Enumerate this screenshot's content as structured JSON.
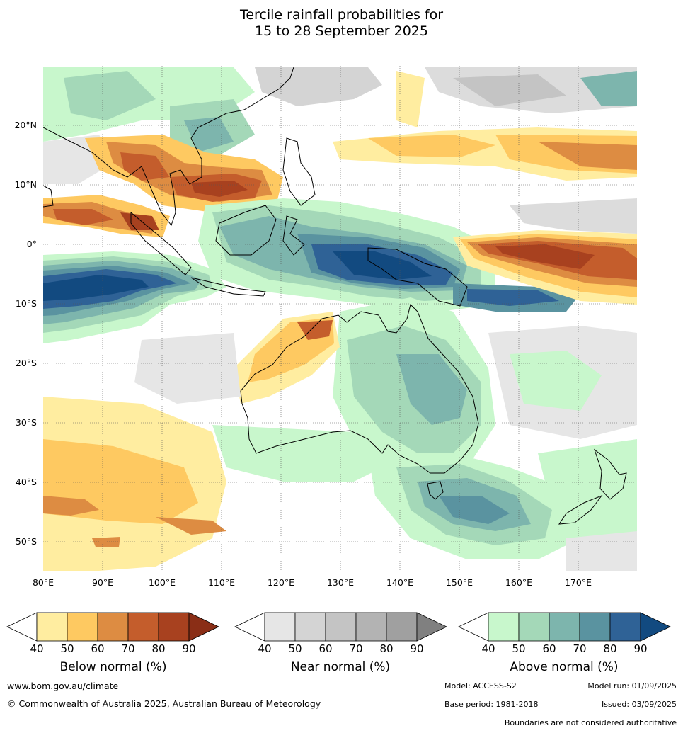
{
  "title": {
    "line1": "Tercile rainfall probabilities for",
    "line2": "15 to 28 September 2025"
  },
  "map": {
    "lon_ticks": [
      "80°E",
      "90°E",
      "100°E",
      "110°E",
      "120°E",
      "130°E",
      "140°E",
      "150°E",
      "160°E",
      "170°E"
    ],
    "lat_ticks": [
      "20°N",
      "10°N",
      "0°",
      "10°S",
      "20°S",
      "30°S",
      "40°S",
      "50°S"
    ],
    "lon_range": [
      80,
      180
    ],
    "lat_range": [
      -55,
      30
    ]
  },
  "legends": [
    {
      "label": "Below normal (%)",
      "ticks": [
        "40",
        "50",
        "60",
        "70",
        "80",
        "90"
      ],
      "colors": [
        "#ffeda0",
        "#fec961",
        "#dd8c42",
        "#c45d2c",
        "#a8411f",
        "#8a2e16"
      ]
    },
    {
      "label": "Near normal (%)",
      "ticks": [
        "40",
        "50",
        "60",
        "70",
        "80",
        "90"
      ],
      "colors": [
        "#e6e6e6",
        "#d4d4d4",
        "#c4c4c4",
        "#b3b3b3",
        "#a0a0a0",
        "#808080"
      ]
    },
    {
      "label": "Above normal (%)",
      "ticks": [
        "40",
        "50",
        "60",
        "70",
        "80",
        "90"
      ],
      "colors": [
        "#c8f7cc",
        "#a4d8b8",
        "#7db5ad",
        "#5a93a0",
        "#2f6296",
        "#124a80"
      ]
    }
  ],
  "footer": {
    "website": "www.bom.gov.au/climate",
    "copyright": "© Commonwealth of Australia 2025, Australian Bureau of Meteorology",
    "model": "Model: ACCESS-S2",
    "model_run": "Model run: 01/09/2025",
    "base_period": "Base period: 1981-2018",
    "issued": "Issued: 03/09/2025",
    "disclaimer": "Boundaries are not considered authoritative"
  }
}
